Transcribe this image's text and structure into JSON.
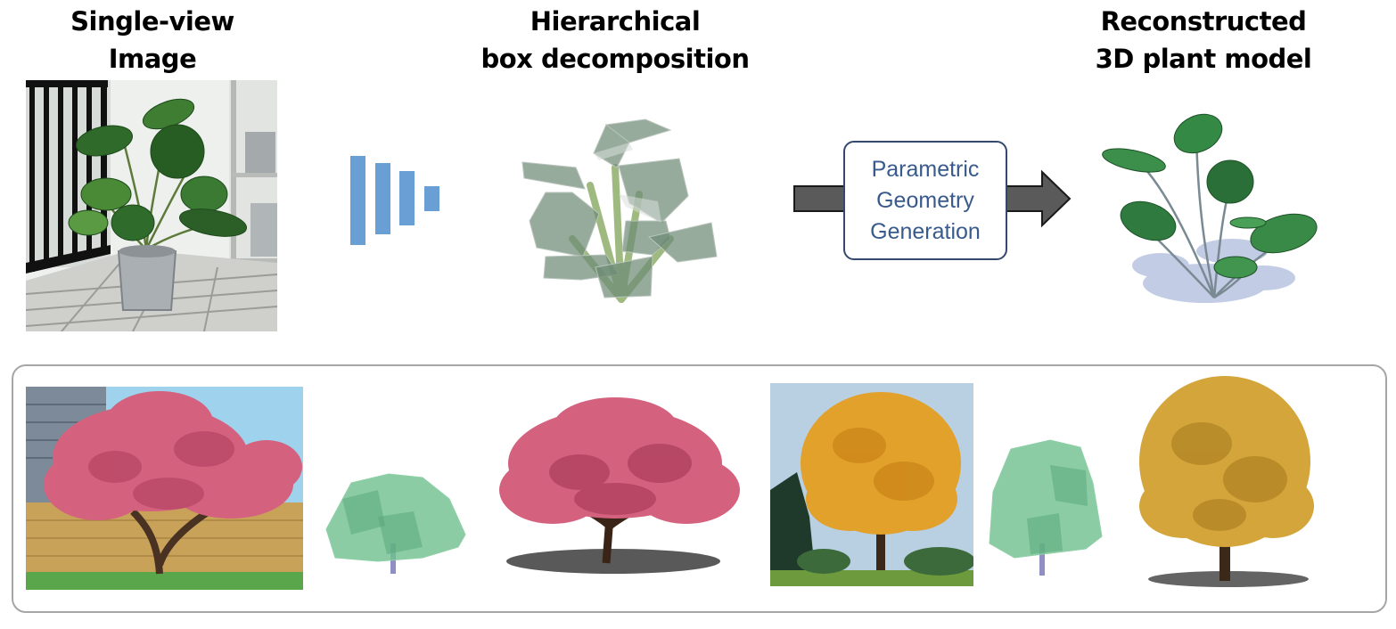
{
  "headings": {
    "input": [
      "Single-view",
      "Image"
    ],
    "boxes": [
      "Hierarchical",
      "box decomposition"
    ],
    "output": [
      "Reconstructed",
      "3D plant model"
    ]
  },
  "process_box": {
    "lines": [
      "Parametric",
      "Geometry",
      "Generation"
    ]
  },
  "colors": {
    "encoder_bars": "#6a9fd6",
    "boxes_gray_green": "#6e8a76",
    "branches": "#8fae6a",
    "arrow_fill": "#5a5a5a",
    "process_border": "#34486e",
    "process_text": "#385a8c",
    "frame_border": "#a6a6a6",
    "proxy_green": "#6fbf8f",
    "proxy_trunk": "#8f8fc4",
    "blossom_pink": "#d4627e",
    "autumn_orange": "#e1a12a",
    "golden_leaves": "#d3a53a"
  },
  "images": {
    "input_photo": "photo-of-potted-monstera-on-balcony",
    "box_model": "hierarchical-box-decomposition-render",
    "output_model": "reconstructed-3d-monstera-render",
    "example_1_photo": "photo-of-pink-blossom-tree",
    "example_1_proxy": "green-box-proxy-of-blossom-tree",
    "example_1_model": "3d-pink-blossom-tree-render",
    "example_2_photo": "photo-of-autumn-maple-tree",
    "example_2_proxy": "green-box-proxy-of-maple-tree",
    "example_2_model": "3d-golden-tree-render"
  }
}
